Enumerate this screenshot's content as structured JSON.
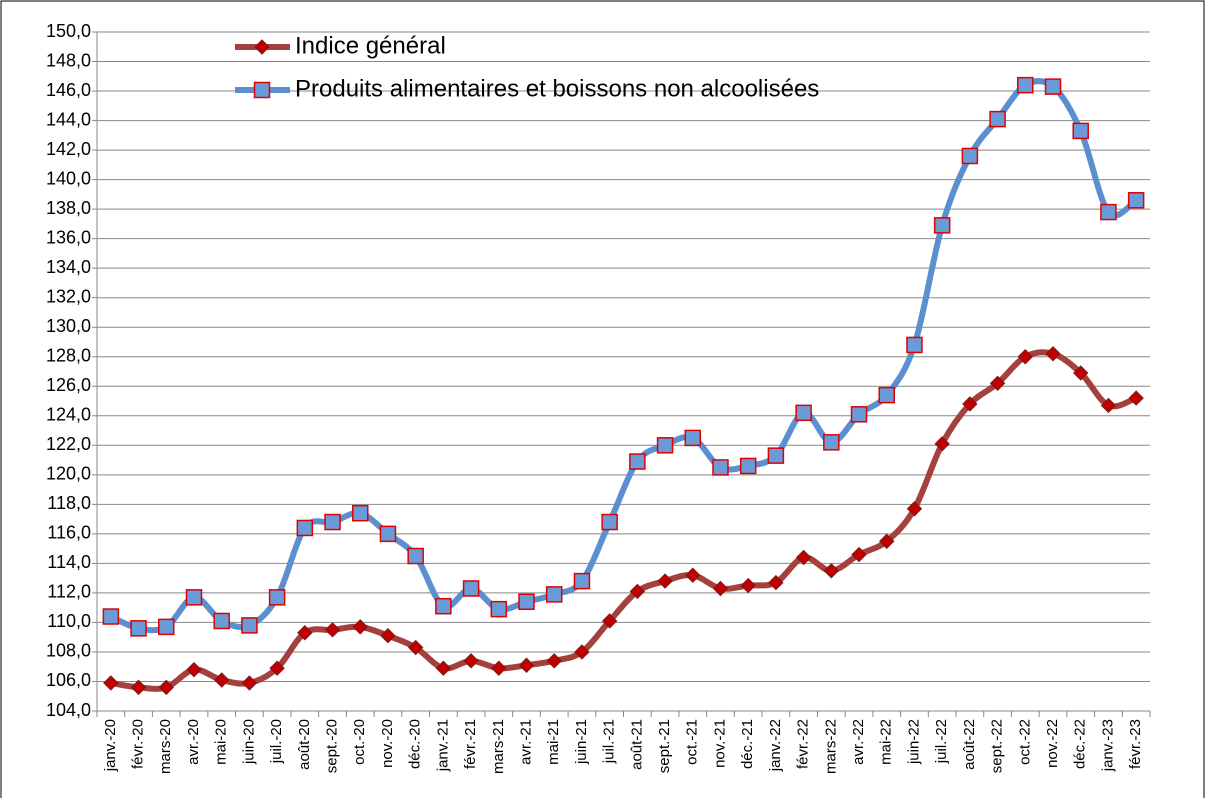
{
  "chart_data": {
    "type": "line",
    "categories": [
      "janv.-20",
      "févr.-20",
      "mars-20",
      "avr.-20",
      "mai-20",
      "juin-20",
      "juil.-20",
      "août-20",
      "sept.-20",
      "oct.-20",
      "nov.-20",
      "déc.-20",
      "janv.-21",
      "févr.-21",
      "mars-21",
      "avr.-21",
      "mai-21",
      "juin-21",
      "juil.-21",
      "août-21",
      "sept.-21",
      "oct.-21",
      "nov.-21",
      "déc.-21",
      "janv.-22",
      "févr.-22",
      "mars-22",
      "avr.-22",
      "mai-22",
      "juin-22",
      "juil.-22",
      "août-22",
      "sept.-22",
      "oct.-22",
      "nov.-22",
      "déc.-22",
      "janv.-23",
      "févr.-23"
    ],
    "series": [
      {
        "name": "Indice général",
        "color": "#a5413c",
        "marker": "diamond",
        "marker_color": "#c00000",
        "values": [
          105.9,
          105.6,
          105.6,
          106.8,
          106.1,
          105.9,
          106.9,
          109.3,
          109.5,
          109.7,
          109.1,
          108.3,
          106.9,
          107.4,
          106.9,
          107.1,
          107.4,
          108.0,
          110.1,
          112.1,
          112.8,
          113.2,
          112.3,
          112.5,
          112.7,
          114.4,
          113.5,
          114.6,
          115.5,
          117.7,
          122.1,
          124.8,
          126.2,
          128.0,
          128.2,
          126.9,
          124.7,
          125.2
        ]
      },
      {
        "name": "Produits alimentaires et boissons non alcoolisées",
        "color": "#5b8fcf",
        "marker": "square",
        "marker_color": "#6a9bd8",
        "values": [
          110.4,
          109.6,
          109.7,
          111.7,
          110.1,
          109.8,
          111.7,
          116.4,
          116.8,
          117.4,
          116.0,
          114.5,
          111.1,
          112.3,
          110.9,
          111.4,
          111.9,
          112.8,
          116.8,
          120.9,
          122.0,
          122.5,
          120.5,
          120.6,
          121.3,
          124.2,
          122.2,
          124.1,
          125.4,
          128.8,
          136.9,
          141.6,
          144.1,
          146.4,
          146.3,
          143.3,
          137.8,
          138.6
        ]
      }
    ],
    "ylim": [
      104,
      150
    ],
    "yticks": [
      {
        "value": 104,
        "label": "104,0"
      },
      {
        "value": 106,
        "label": "106,0"
      },
      {
        "value": 108,
        "label": "108,0"
      },
      {
        "value": 110,
        "label": "110,0"
      },
      {
        "value": 112,
        "label": "112,0"
      },
      {
        "value": 114,
        "label": "114,0"
      },
      {
        "value": 116,
        "label": "116,0"
      },
      {
        "value": 118,
        "label": "118,0"
      },
      {
        "value": 120,
        "label": "120,0"
      },
      {
        "value": 122,
        "label": "122,0"
      },
      {
        "value": 124,
        "label": "124,0"
      },
      {
        "value": 126,
        "label": "126,0"
      },
      {
        "value": 128,
        "label": "128,0"
      },
      {
        "value": 130,
        "label": "130,0"
      },
      {
        "value": 132,
        "label": "132,0"
      },
      {
        "value": 134,
        "label": "134,0"
      },
      {
        "value": 136,
        "label": "136,0"
      },
      {
        "value": 138,
        "label": "138,0"
      },
      {
        "value": 140,
        "label": "140,0"
      },
      {
        "value": 142,
        "label": "142,0"
      },
      {
        "value": 144,
        "label": "144,0"
      },
      {
        "value": 146,
        "label": "146,0"
      },
      {
        "value": 148,
        "label": "148,0"
      },
      {
        "value": 150,
        "label": "150,0"
      }
    ],
    "grid": true
  }
}
